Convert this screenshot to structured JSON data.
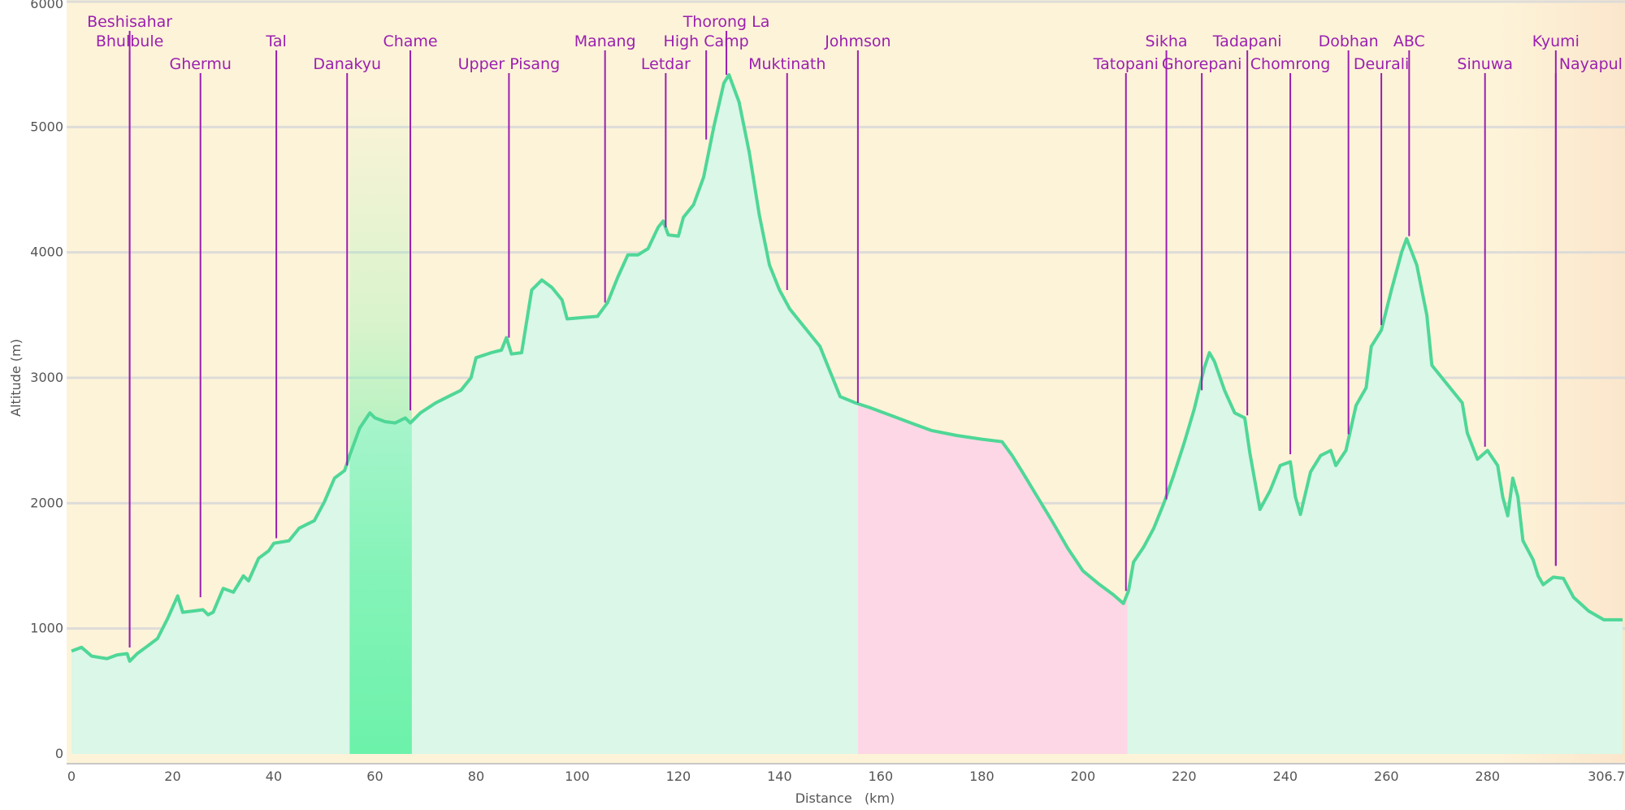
{
  "chart_data": {
    "type": "area",
    "xlabel": "Distance   (km)",
    "ylabel": "Altitude (m)",
    "xlim": [
      0,
      306.7
    ],
    "ylim": [
      0,
      6000
    ],
    "x_ticks": [
      "0",
      "20",
      "40",
      "60",
      "80",
      "100",
      "120",
      "140",
      "160",
      "180",
      "200",
      "220",
      "240",
      "260",
      "280",
      "306.7"
    ],
    "y_ticks": [
      "0",
      "1000",
      "2000",
      "3000",
      "4000",
      "5000",
      "6000"
    ],
    "grid": true,
    "colors": {
      "background": "#fdf3d8",
      "background_edge": "#fbe6cc",
      "fill": "#daf7e8",
      "line": "#4fd797",
      "highlight_green": "#6cf2aa",
      "highlight_pink": "#fed7e6",
      "label": "#9b1fb0",
      "grid": "#dadada"
    },
    "highlights": [
      {
        "from": 55,
        "to": 67.3,
        "color": "green"
      },
      {
        "from": 155.5,
        "to": 208.8,
        "color": "pink"
      }
    ],
    "profile": [
      [
        0,
        820
      ],
      [
        2,
        850
      ],
      [
        4,
        780
      ],
      [
        7,
        760
      ],
      [
        9,
        790
      ],
      [
        11,
        800
      ],
      [
        11.5,
        740
      ],
      [
        13,
        800
      ],
      [
        15,
        860
      ],
      [
        17,
        920
      ],
      [
        19,
        1080
      ],
      [
        21,
        1260
      ],
      [
        22,
        1130
      ],
      [
        24,
        1140
      ],
      [
        26,
        1150
      ],
      [
        27,
        1110
      ],
      [
        28,
        1130
      ],
      [
        30,
        1320
      ],
      [
        32,
        1290
      ],
      [
        34,
        1420
      ],
      [
        35,
        1380
      ],
      [
        37,
        1560
      ],
      [
        39,
        1620
      ],
      [
        40,
        1680
      ],
      [
        43,
        1700
      ],
      [
        45,
        1800
      ],
      [
        48,
        1860
      ],
      [
        50,
        2010
      ],
      [
        52,
        2200
      ],
      [
        54,
        2260
      ],
      [
        55,
        2380
      ],
      [
        57,
        2600
      ],
      [
        59,
        2720
      ],
      [
        60,
        2680
      ],
      [
        62,
        2650
      ],
      [
        64,
        2640
      ],
      [
        66,
        2680
      ],
      [
        67,
        2640
      ],
      [
        69,
        2720
      ],
      [
        72,
        2800
      ],
      [
        75,
        2860
      ],
      [
        77,
        2900
      ],
      [
        79,
        3000
      ],
      [
        80,
        3160
      ],
      [
        83,
        3200
      ],
      [
        85,
        3220
      ],
      [
        86,
        3320
      ],
      [
        87,
        3190
      ],
      [
        89,
        3200
      ],
      [
        91,
        3700
      ],
      [
        93,
        3780
      ],
      [
        95,
        3720
      ],
      [
        97,
        3620
      ],
      [
        98,
        3470
      ],
      [
        101,
        3480
      ],
      [
        104,
        3490
      ],
      [
        106,
        3600
      ],
      [
        108,
        3800
      ],
      [
        110,
        3980
      ],
      [
        112,
        3980
      ],
      [
        114,
        4030
      ],
      [
        116,
        4200
      ],
      [
        117,
        4250
      ],
      [
        118,
        4140
      ],
      [
        120,
        4130
      ],
      [
        121,
        4280
      ],
      [
        123,
        4380
      ],
      [
        125,
        4600
      ],
      [
        127,
        5000
      ],
      [
        129,
        5350
      ],
      [
        130,
        5416
      ],
      [
        132,
        5200
      ],
      [
        134,
        4800
      ],
      [
        136,
        4300
      ],
      [
        138,
        3900
      ],
      [
        140,
        3700
      ],
      [
        142,
        3550
      ],
      [
        145,
        3400
      ],
      [
        148,
        3250
      ],
      [
        150,
        3050
      ],
      [
        152,
        2850
      ],
      [
        155,
        2800
      ],
      [
        158,
        2760
      ],
      [
        162,
        2700
      ],
      [
        166,
        2640
      ],
      [
        170,
        2580
      ],
      [
        175,
        2540
      ],
      [
        180,
        2510
      ],
      [
        184,
        2490
      ],
      [
        186,
        2380
      ],
      [
        188,
        2250
      ],
      [
        191,
        2050
      ],
      [
        194,
        1850
      ],
      [
        197,
        1640
      ],
      [
        200,
        1460
      ],
      [
        203,
        1360
      ],
      [
        206,
        1270
      ],
      [
        208,
        1200
      ],
      [
        209,
        1300
      ],
      [
        210,
        1530
      ],
      [
        212,
        1650
      ],
      [
        214,
        1800
      ],
      [
        216,
        2000
      ],
      [
        218,
        2230
      ],
      [
        220,
        2480
      ],
      [
        222,
        2750
      ],
      [
        224,
        3080
      ],
      [
        225,
        3200
      ],
      [
        226,
        3130
      ],
      [
        228,
        2900
      ],
      [
        230,
        2720
      ],
      [
        232,
        2680
      ],
      [
        233,
        2400
      ],
      [
        235,
        1950
      ],
      [
        237,
        2100
      ],
      [
        239,
        2300
      ],
      [
        241,
        2330
      ],
      [
        242,
        2050
      ],
      [
        243,
        1910
      ],
      [
        245,
        2250
      ],
      [
        247,
        2380
      ],
      [
        249,
        2420
      ],
      [
        250,
        2300
      ],
      [
        252,
        2420
      ],
      [
        254,
        2780
      ],
      [
        256,
        2920
      ],
      [
        257,
        3250
      ],
      [
        259,
        3380
      ],
      [
        261,
        3700
      ],
      [
        263,
        4000
      ],
      [
        264,
        4110
      ],
      [
        266,
        3900
      ],
      [
        268,
        3500
      ],
      [
        269,
        3100
      ],
      [
        275,
        2800
      ],
      [
        276,
        2560
      ],
      [
        278,
        2350
      ],
      [
        280,
        2420
      ],
      [
        282,
        2300
      ],
      [
        283,
        2050
      ],
      [
        284,
        1900
      ],
      [
        285,
        2200
      ],
      [
        286,
        2050
      ],
      [
        287,
        1700
      ],
      [
        289,
        1550
      ],
      [
        290,
        1420
      ],
      [
        291,
        1350
      ],
      [
        293,
        1410
      ],
      [
        295,
        1400
      ],
      [
        297,
        1250
      ],
      [
        300,
        1140
      ],
      [
        303,
        1070
      ],
      [
        306.7,
        1070
      ]
    ],
    "places": [
      {
        "name": "Beshisahar",
        "x": 11.5,
        "alt": 850,
        "row": 0,
        "align": "middle"
      },
      {
        "name": "Bhulbule",
        "x": 11.5,
        "alt": 850,
        "row": 1,
        "align": "middle"
      },
      {
        "name": "Ghermu",
        "x": 25.5,
        "alt": 1250,
        "row": 2,
        "align": "middle"
      },
      {
        "name": "Tal",
        "x": 40.5,
        "alt": 1720,
        "row": 1,
        "align": "middle"
      },
      {
        "name": "Danakyu",
        "x": 54.5,
        "alt": 2300,
        "row": 2,
        "align": "middle"
      },
      {
        "name": "Chame",
        "x": 67,
        "alt": 2740,
        "row": 1,
        "align": "middle"
      },
      {
        "name": "Upper Pisang",
        "x": 86.5,
        "alt": 3320,
        "row": 2,
        "align": "middle"
      },
      {
        "name": "Manang",
        "x": 105.5,
        "alt": 3600,
        "row": 1,
        "align": "middle"
      },
      {
        "name": "Letdar",
        "x": 117.5,
        "alt": 4200,
        "row": 2,
        "align": "middle"
      },
      {
        "name": "High Camp",
        "x": 125.5,
        "alt": 4900,
        "row": 1,
        "align": "middle"
      },
      {
        "name": "Thorong La",
        "x": 129.5,
        "alt": 5416,
        "row": 0,
        "align": "middle"
      },
      {
        "name": "Muktinath",
        "x": 141.5,
        "alt": 3700,
        "row": 2,
        "align": "middle"
      },
      {
        "name": "Johmson",
        "x": 155.5,
        "alt": 2800,
        "row": 1,
        "align": "middle"
      },
      {
        "name": "Tatopani",
        "x": 208.5,
        "alt": 1300,
        "row": 2,
        "align": "middle"
      },
      {
        "name": "Sikha",
        "x": 216.5,
        "alt": 2030,
        "row": 1,
        "align": "middle"
      },
      {
        "name": "Ghorepani",
        "x": 223.5,
        "alt": 2900,
        "row": 2,
        "align": "middle"
      },
      {
        "name": "Tadapani",
        "x": 232.5,
        "alt": 2700,
        "row": 1,
        "align": "middle"
      },
      {
        "name": "Chomrong",
        "x": 241,
        "alt": 2390,
        "row": 2,
        "align": "middle"
      },
      {
        "name": "Dobhan",
        "x": 252.5,
        "alt": 2550,
        "row": 1,
        "align": "middle"
      },
      {
        "name": "Deurali",
        "x": 259,
        "alt": 3420,
        "row": 2,
        "align": "middle"
      },
      {
        "name": "ABC",
        "x": 264.5,
        "alt": 4130,
        "row": 1,
        "align": "middle"
      },
      {
        "name": "Sinuwa",
        "x": 279.5,
        "alt": 2450,
        "row": 2,
        "align": "middle"
      },
      {
        "name": "Kyumi",
        "x": 293.5,
        "alt": 1500,
        "row": 1,
        "align": "middle"
      },
      {
        "name": "Nayapul",
        "x": 293.5,
        "alt": 1500,
        "row": 2,
        "align": "start"
      }
    ]
  }
}
